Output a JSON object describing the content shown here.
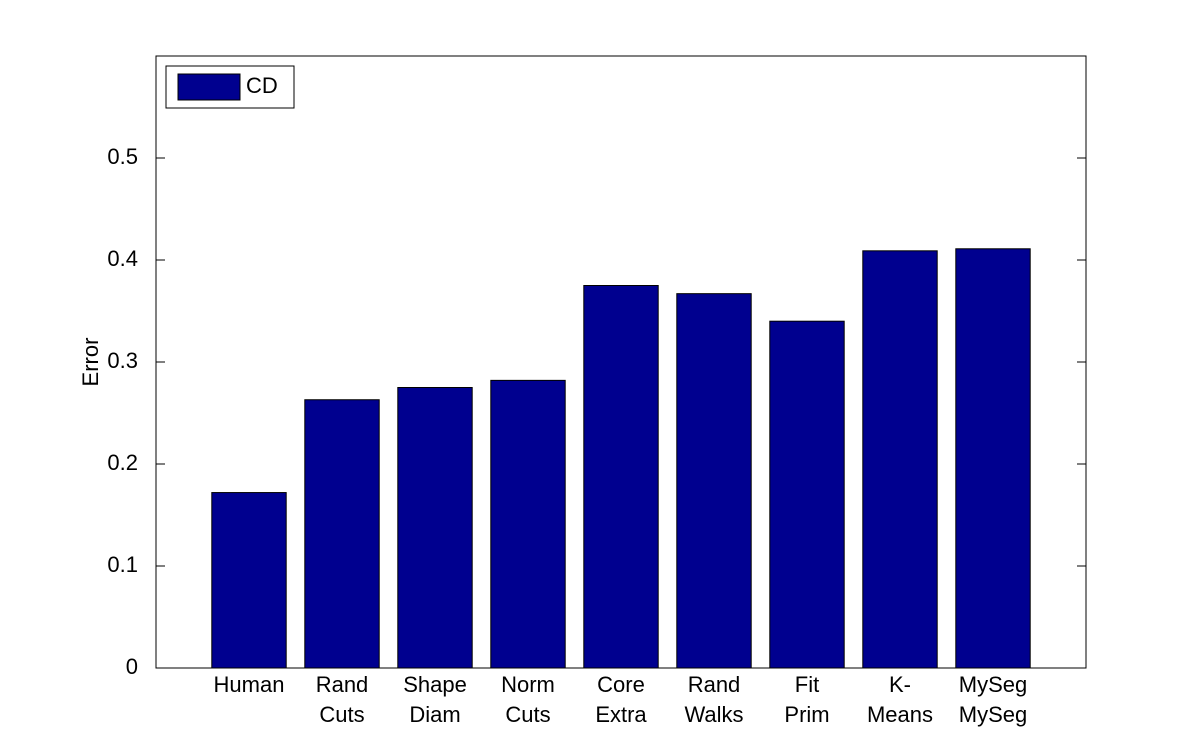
{
  "chart_data": {
    "type": "bar",
    "y_label": "Error",
    "categories": [
      [
        "Human"
      ],
      [
        "Rand",
        "Cuts"
      ],
      [
        "Shape",
        "Diam"
      ],
      [
        "Norm",
        "Cuts"
      ],
      [
        "Core",
        "Extra"
      ],
      [
        "Rand",
        "Walks"
      ],
      [
        "Fit",
        "Prim"
      ],
      [
        "K-",
        "Means"
      ],
      [
        "MySeg",
        "MySeg"
      ]
    ],
    "series": [
      {
        "name": "CD",
        "color": "#00008f",
        "values": [
          0.172,
          0.263,
          0.275,
          0.282,
          0.375,
          0.367,
          0.34,
          0.409,
          0.411
        ]
      }
    ],
    "ylim": [
      0,
      0.6
    ],
    "yticks": [
      0,
      0.1,
      0.2,
      0.3,
      0.4,
      0.5
    ],
    "legend": "upper-left",
    "grid": false
  }
}
